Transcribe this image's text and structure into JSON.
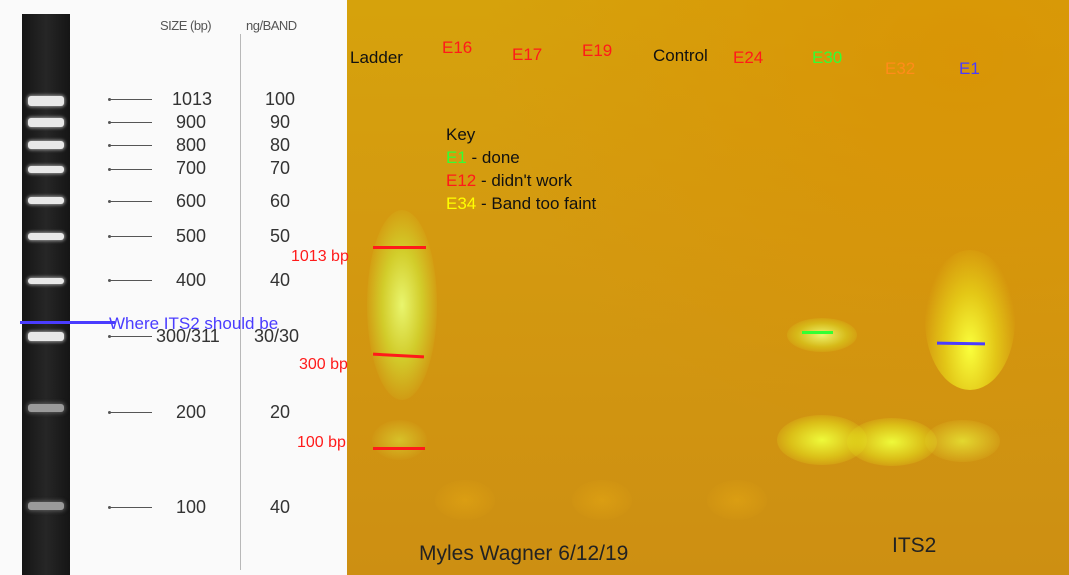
{
  "ladder": {
    "header_size": "SIZE (bp)",
    "header_ng": "ng/BAND",
    "sizes": [
      "1013",
      "900",
      "800",
      "700",
      "600",
      "500",
      "400",
      "300/311",
      "200",
      "100"
    ],
    "ng": [
      "100",
      "90",
      "80",
      "70",
      "60",
      "50",
      "40",
      "30/30",
      "20",
      "40"
    ]
  },
  "gel": {
    "lanes": {
      "ladder": "Ladder",
      "e16": "E16",
      "e17": "E17",
      "e19": "E19",
      "control": "Control",
      "e24": "E24",
      "e30": "E30",
      "e32": "E32",
      "e1": "E1"
    },
    "key": {
      "title": "Key",
      "done_code": "E1",
      "done_text": " - done",
      "fail_code": "E12",
      "fail_text": " - didn't work",
      "faint_code": "E34",
      "faint_text": " - Band too faint"
    },
    "markers": {
      "bp1013": "1013 bp",
      "bp300": "300 bp",
      "bp100": "100 bp"
    },
    "its2_line": "Where ITS2 should be",
    "author": "Myles Wagner 6/12/19",
    "target": "ITS2"
  },
  "colors": {
    "red": "#ff1a1a",
    "green": "#33ff33",
    "yellow": "#ffff00",
    "orange": "#ff8c1a",
    "blue": "#4a3cff"
  }
}
